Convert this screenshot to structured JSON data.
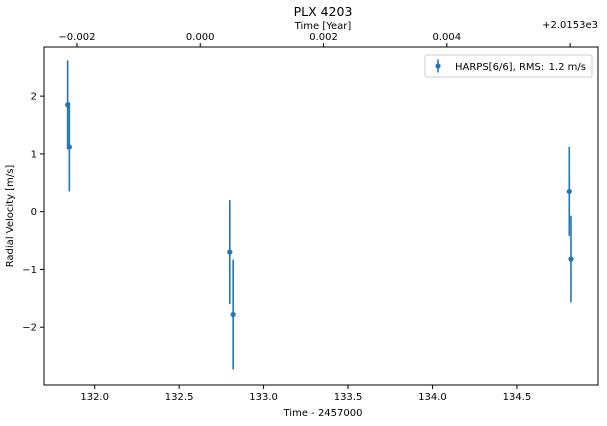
{
  "chart_data": {
    "type": "scatter",
    "title": "PLX 4203",
    "xlabel": "Time - 2457000",
    "ylabel": "Radial Velocity [m/s]",
    "top_xlabel": "Time [Year]",
    "top_offset_label": "+2.0153e3",
    "xlim": [
      131.7,
      134.98
    ],
    "ylim": [
      -3.0,
      2.85
    ],
    "x_ticks": [
      132.0,
      132.5,
      133.0,
      133.5,
      134.0,
      134.5
    ],
    "x_tick_labels": [
      "132.0",
      "132.5",
      "133.0",
      "133.5",
      "134.0",
      "134.5"
    ],
    "y_ticks": [
      -2,
      -1,
      0,
      1,
      2
    ],
    "y_tick_labels": [
      "−2",
      "−1",
      "0",
      "1",
      "2"
    ],
    "top_ticks_x": [
      131.895,
      132.625,
      133.355,
      134.085,
      134.815
    ],
    "top_tick_labels": [
      "−0.002",
      "0.000",
      "0.002",
      "0.004",
      ""
    ],
    "legend": {
      "label": "HARPS[6/6], RMS:",
      "value": "1.2 m/s",
      "placement": "top-right"
    },
    "color": "#1f77b4",
    "series": [
      {
        "name": "HARPS[6/6], RMS:",
        "points": [
          {
            "x": 131.84,
            "y": 1.85,
            "err": 0.77
          },
          {
            "x": 131.85,
            "y": 1.12,
            "err": 0.77
          },
          {
            "x": 132.8,
            "y": -0.7,
            "err": 0.9
          },
          {
            "x": 132.82,
            "y": -1.78,
            "err": 0.95
          },
          {
            "x": 134.81,
            "y": 0.35,
            "err": 0.77
          },
          {
            "x": 134.82,
            "y": -0.82,
            "err": 0.75
          }
        ]
      }
    ]
  }
}
